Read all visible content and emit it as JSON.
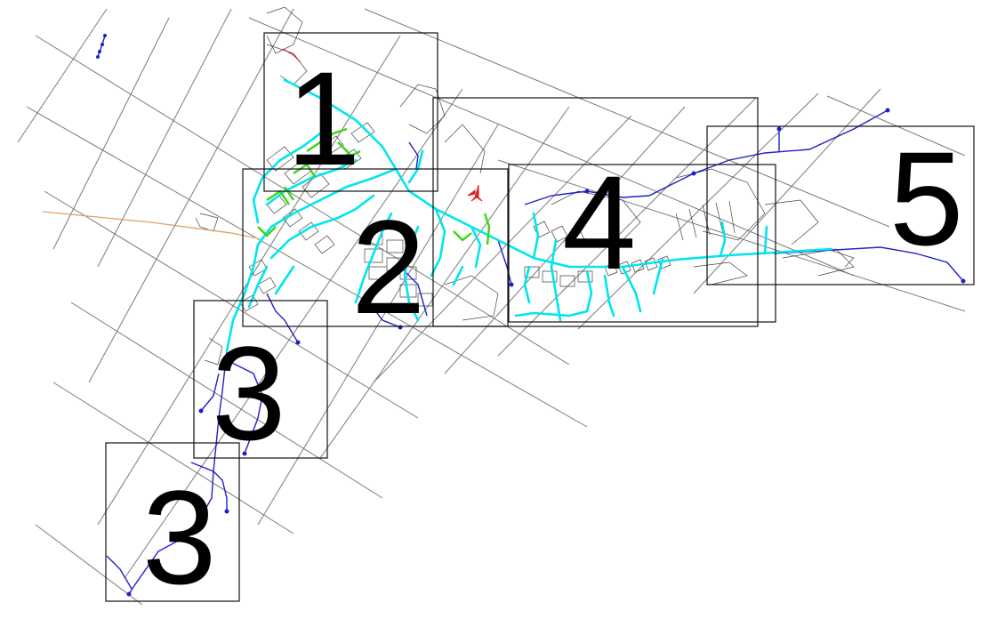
{
  "map": {
    "sheets": [
      {
        "id": "sheet-1",
        "number": "1"
      },
      {
        "id": "sheet-2",
        "number": "2"
      },
      {
        "id": "sheet-3a",
        "number": "3"
      },
      {
        "id": "sheet-3b",
        "number": "3"
      },
      {
        "id": "sheet-4",
        "number": "4"
      },
      {
        "id": "sheet-5",
        "number": "5"
      }
    ],
    "colors": {
      "background": "#ffffff",
      "grid": "#7a7a7a",
      "frame": "#111111",
      "existing_network": "#00e5ee",
      "proposed_network": "#2020c8",
      "highlight_network": "#39d615",
      "inflow_line": "#e0a060",
      "north_arrow": "#e02020",
      "buildings": "#333333"
    },
    "legend_icons": [
      "north-arrow-icon"
    ]
  }
}
